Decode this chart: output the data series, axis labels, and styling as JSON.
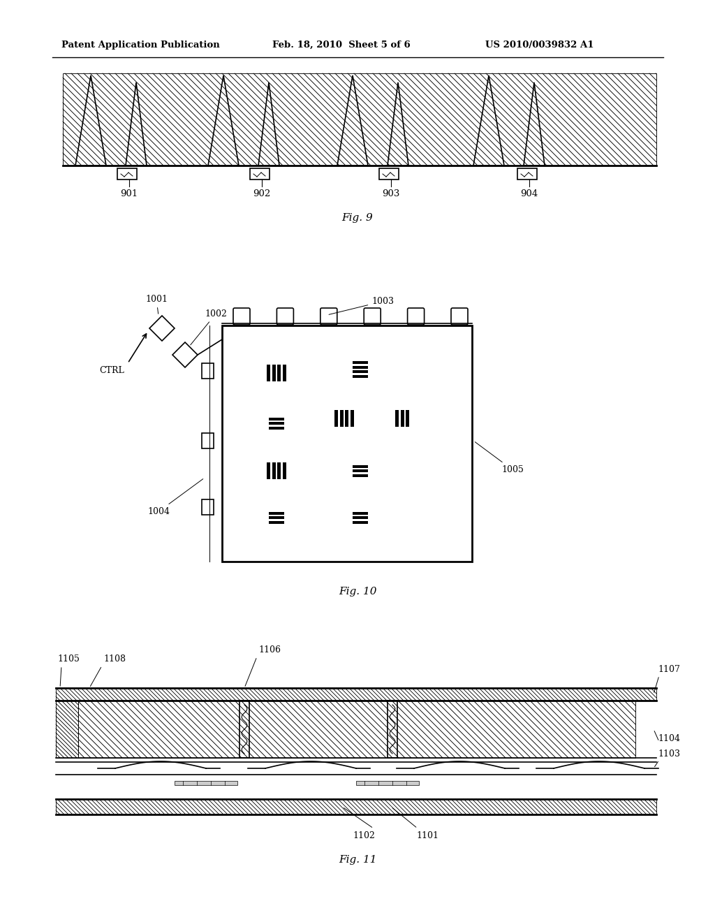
{
  "header_left": "Patent Application Publication",
  "header_mid": "Feb. 18, 2010  Sheet 5 of 6",
  "header_right": "US 2010/0039832 A1",
  "background": "#ffffff",
  "fig9_label": "Fig. 9",
  "fig10_label": "Fig. 10",
  "fig11_label": "Fig. 11",
  "labels_fig9": [
    "901",
    "902",
    "903",
    "904"
  ],
  "labels_fig10_nums": [
    "1001",
    "1002",
    "1003",
    "1004",
    "1005"
  ],
  "labels_fig10_ctrl": "CTRL",
  "labels_fig11": [
    "1101",
    "1102",
    "1103",
    "1104",
    "1105",
    "1106",
    "1107",
    "1108"
  ]
}
